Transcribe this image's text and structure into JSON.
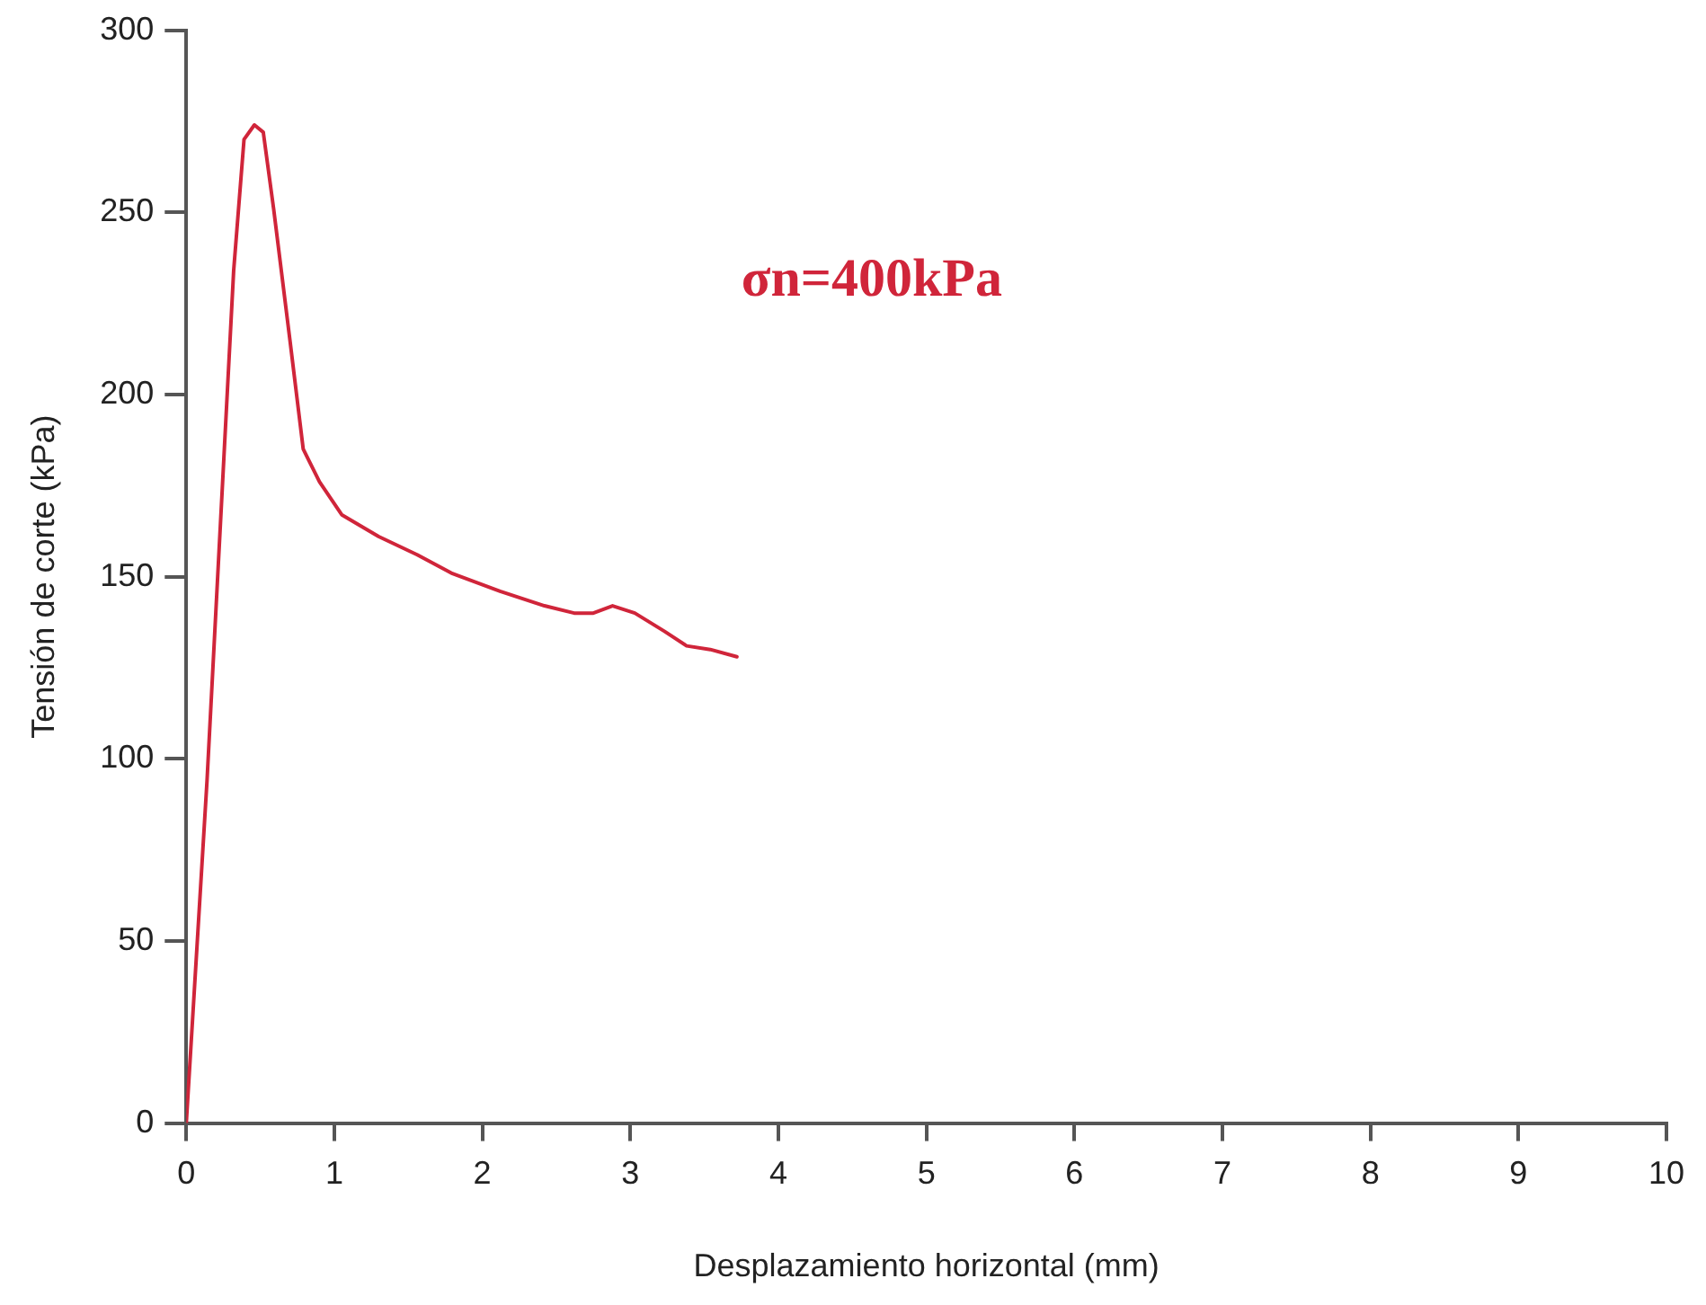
{
  "chart_data": {
    "type": "line",
    "xlabel": "Desplazamiento horizontal (mm)",
    "ylabel": "Tensión de corte (kPa)",
    "annotations": [
      "σn=400kPa"
    ],
    "series": [
      {
        "color": "#d0253a",
        "x": [
          0,
          0.14,
          0.32,
          0.39,
          0.46,
          0.52,
          0.59,
          0.7,
          0.79,
          0.9,
          1.05,
          1.3,
          1.56,
          1.79,
          2.12,
          2.42,
          2.62,
          2.75,
          2.88,
          3.03,
          3.23,
          3.38,
          3.54,
          3.72
        ],
        "values": [
          0,
          94,
          234,
          270,
          274,
          272,
          251,
          215,
          185,
          176,
          167,
          161,
          156,
          151,
          146,
          142,
          140,
          140,
          142,
          140,
          135,
          131,
          130,
          128
        ]
      }
    ],
    "xlim": [
      0,
      10
    ],
    "xticks": [
      0,
      1,
      2,
      3,
      4,
      5,
      6,
      7,
      8,
      9,
      10
    ],
    "ylim": [
      0,
      300
    ],
    "yticks": [
      0,
      50,
      100,
      150,
      200,
      250,
      300
    ],
    "grid": false,
    "legend": false,
    "marker": "none",
    "line_style": "solid"
  }
}
